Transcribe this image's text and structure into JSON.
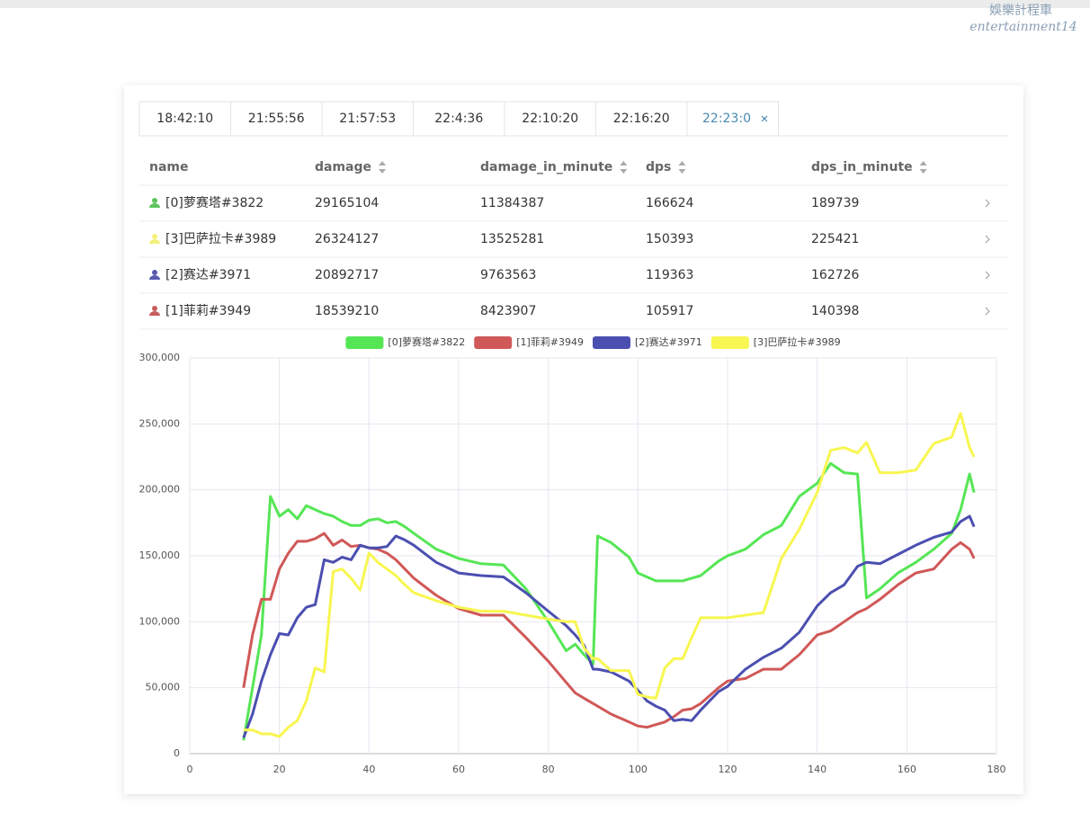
{
  "watermark": {
    "line1": "娛樂計程車",
    "line2": "entertainment14"
  },
  "tabs": {
    "items": [
      "18:42:10",
      "21:55:56",
      "21:57:53",
      "22:4:36",
      "22:10:20",
      "22:16:20",
      "22:23:0"
    ],
    "active": 6
  },
  "table": {
    "headers": [
      "name",
      "damage",
      "damage_in_minute",
      "dps",
      "dps_in_minute"
    ],
    "rows": [
      {
        "icon_color": "#5cc45c",
        "cells": [
          "[0]萝赛塔#3822",
          29165104,
          11384387,
          166624,
          189739
        ]
      },
      {
        "icon_color": "#f5f07a",
        "cells": [
          "[3]巴萨拉卡#3989",
          26324127,
          13525281,
          150393,
          225421
        ]
      },
      {
        "icon_color": "#5a5ab0",
        "cells": [
          "[2]赛达#3971",
          20892717,
          9763563,
          119363,
          162726
        ]
      },
      {
        "icon_color": "#c85c5c",
        "cells": [
          "[1]菲莉#3949",
          18539210,
          8423907,
          105917,
          140398
        ]
      }
    ]
  },
  "chart_data": {
    "type": "line",
    "x": [
      12,
      14,
      16,
      18,
      20,
      22,
      24,
      26,
      28,
      30,
      32,
      34,
      36,
      38,
      40,
      42,
      44,
      46,
      48,
      50,
      55,
      60,
      65,
      70,
      75,
      80,
      84,
      86,
      88,
      90,
      91,
      94,
      98,
      100,
      102,
      104,
      106,
      108,
      110,
      112,
      114,
      118,
      120,
      124,
      128,
      132,
      136,
      140,
      143,
      146,
      149,
      151,
      154,
      158,
      162,
      166,
      170,
      172,
      174,
      175
    ],
    "series": [
      {
        "name": "[0]萝赛塔#3822",
        "color": "#55e655",
        "values": [
          10000,
          50000,
          90000,
          195000,
          180000,
          185000,
          178000,
          188000,
          185000,
          182000,
          180000,
          176000,
          173000,
          173000,
          177000,
          178000,
          175000,
          176000,
          172000,
          167000,
          155000,
          148000,
          144000,
          143000,
          125000,
          100000,
          78000,
          83000,
          75000,
          68000,
          165000,
          160000,
          149000,
          137000,
          134000,
          131000,
          131000,
          131000,
          131000,
          133000,
          135000,
          146000,
          150000,
          155000,
          166000,
          173000,
          195000,
          205000,
          220000,
          213000,
          212000,
          118000,
          125000,
          137000,
          145000,
          155000,
          167000,
          185000,
          212000,
          198000
        ]
      },
      {
        "name": "[1]菲莉#3949",
        "color": "#d05858",
        "values": [
          50000,
          90000,
          117000,
          117000,
          140000,
          152000,
          161000,
          161000,
          163000,
          167000,
          158000,
          162000,
          157000,
          158000,
          156000,
          155000,
          152000,
          147000,
          140000,
          133000,
          120000,
          110000,
          105000,
          105000,
          88000,
          70000,
          54000,
          46000,
          42000,
          38000,
          36000,
          30000,
          24000,
          21000,
          20000,
          22000,
          24000,
          28000,
          33000,
          34000,
          38000,
          50000,
          55000,
          57000,
          64000,
          64000,
          75000,
          90000,
          93000,
          100000,
          107000,
          110000,
          117000,
          128000,
          137000,
          140000,
          155000,
          160000,
          155000,
          148000
        ]
      },
      {
        "name": "[2]赛达#3971",
        "color": "#4b4fb0",
        "values": [
          12000,
          30000,
          55000,
          75000,
          91000,
          90000,
          103000,
          111000,
          113000,
          147000,
          145000,
          149000,
          147000,
          158000,
          156000,
          156000,
          157000,
          165000,
          162000,
          158000,
          145000,
          137000,
          135000,
          134000,
          122000,
          108000,
          97000,
          90000,
          82000,
          64000,
          64000,
          62000,
          55000,
          48000,
          40000,
          36000,
          33000,
          25000,
          26000,
          25000,
          33000,
          47000,
          51000,
          64000,
          73000,
          80000,
          92000,
          112000,
          122000,
          128000,
          142000,
          145000,
          144000,
          151000,
          158000,
          164000,
          168000,
          176000,
          180000,
          172000
        ]
      },
      {
        "name": "[3]巴萨拉卡#3989",
        "color": "#f8f650",
        "values": [
          18000,
          18000,
          15000,
          15000,
          13000,
          20000,
          25000,
          40000,
          65000,
          62000,
          138000,
          140000,
          133000,
          124000,
          152000,
          145000,
          140000,
          135000,
          128000,
          122000,
          116000,
          111000,
          108000,
          108000,
          105000,
          102000,
          100000,
          100000,
          80000,
          72000,
          72000,
          63000,
          63000,
          45000,
          43000,
          42000,
          65000,
          72000,
          72000,
          88000,
          103000,
          103000,
          103000,
          105000,
          107000,
          148000,
          170000,
          198000,
          230000,
          232000,
          228000,
          236000,
          213000,
          213000,
          215000,
          235000,
          240000,
          258000,
          232000,
          225000
        ]
      }
    ],
    "xlim": [
      0,
      180
    ],
    "xticks": [
      0,
      20,
      40,
      60,
      80,
      100,
      120,
      140,
      160,
      180
    ],
    "ylim": [
      0,
      300000
    ],
    "yticks": [
      0,
      {
        "value": 50000,
        "label": "50,000"
      },
      {
        "value": 100000,
        "label": "100,000"
      },
      {
        "value": 150000,
        "label": "150,000"
      },
      {
        "value": 200000,
        "label": "200,000"
      },
      {
        "value": 250000,
        "label": "250,000"
      },
      {
        "value": 300000,
        "label": "300,000"
      }
    ],
    "grid": true,
    "legend": "top"
  }
}
